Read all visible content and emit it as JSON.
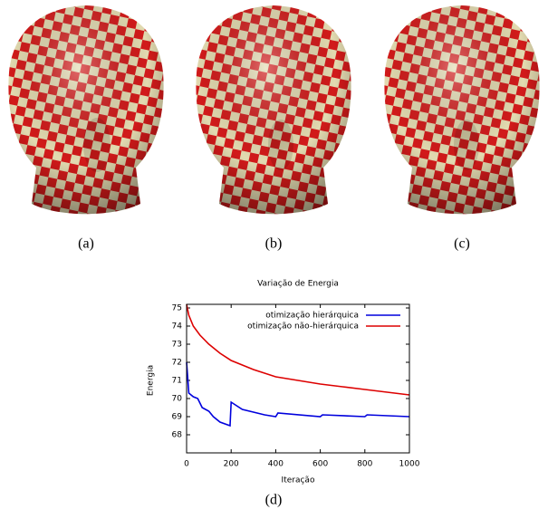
{
  "panels": {
    "labels": [
      "(a)",
      "(b)",
      "(c)",
      "(d)"
    ]
  },
  "chart_data": {
    "type": "line",
    "title": "Variação de Energia",
    "x_label": "Iteração",
    "y_label": "Energia",
    "xlim": [
      0,
      1000
    ],
    "xticks": [
      0,
      200,
      400,
      600,
      800,
      1000
    ],
    "ylim": [
      67,
      75.2
    ],
    "yticks": [
      68,
      69,
      70,
      71,
      72,
      73,
      74,
      75
    ],
    "legend": "upper right",
    "series": [
      {
        "name": "otimização hierárquica",
        "color": "#0000dd",
        "x": [
          0,
          10,
          30,
          50,
          70,
          100,
          120,
          150,
          195,
          200,
          250,
          350,
          400,
          410,
          600,
          610,
          800,
          810,
          1000
        ],
        "values": [
          72,
          70.3,
          70.1,
          70,
          69.5,
          69.3,
          69,
          68.7,
          68.5,
          69.8,
          69.4,
          69.1,
          69,
          69.2,
          69,
          69.1,
          69,
          69.1,
          69
        ]
      },
      {
        "name": "otimização não-hierárquica",
        "color": "#dd0000",
        "x": [
          0,
          10,
          30,
          60,
          100,
          150,
          200,
          300,
          400,
          500,
          600,
          700,
          800,
          900,
          1000
        ],
        "values": [
          75.2,
          74.6,
          74,
          73.5,
          73,
          72.5,
          72.1,
          71.6,
          71.2,
          71,
          70.8,
          70.65,
          70.5,
          70.35,
          70.2
        ]
      }
    ]
  }
}
